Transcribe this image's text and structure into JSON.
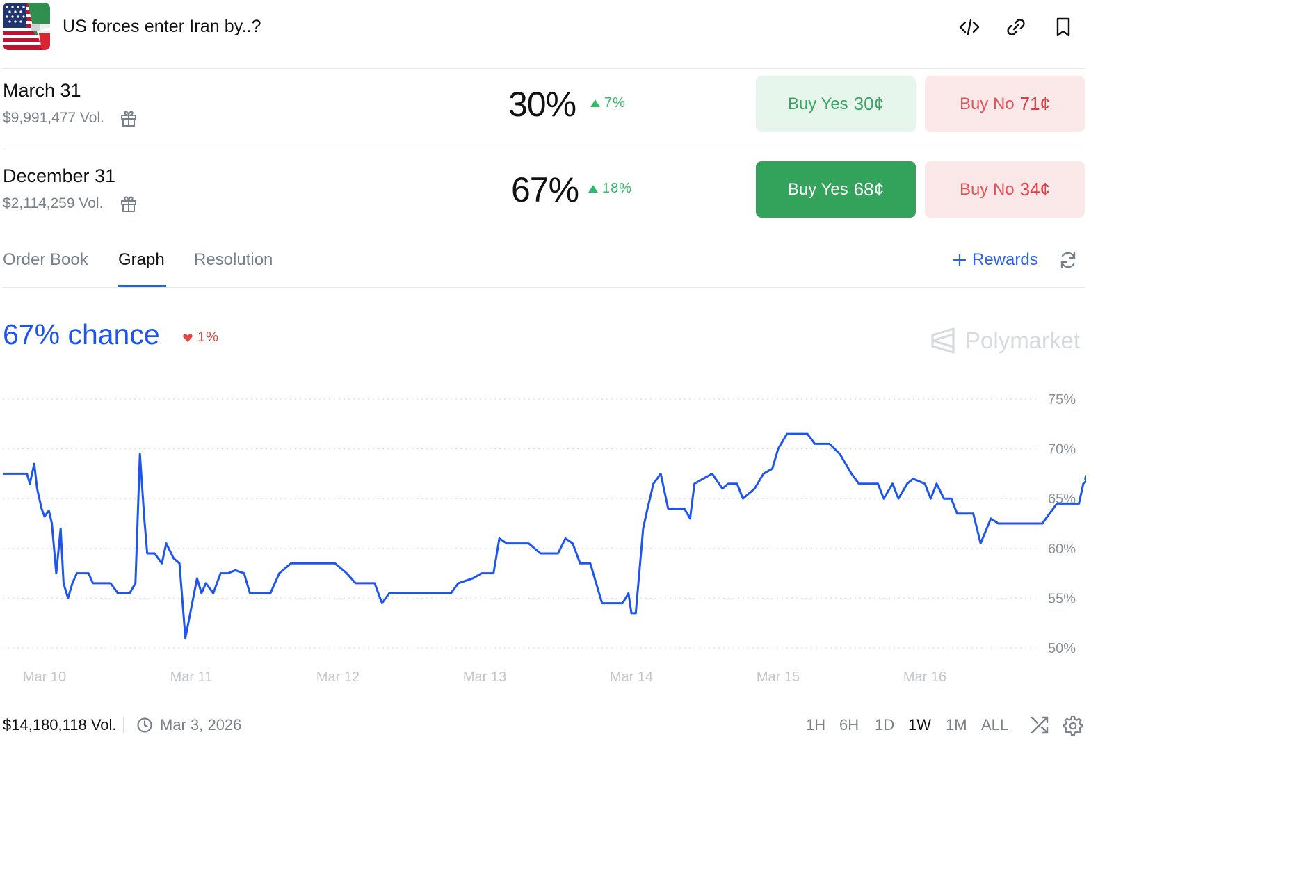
{
  "header": {
    "title": "US forces enter Iran by..?",
    "icons": [
      "code-icon",
      "link-icon",
      "bookmark-icon"
    ]
  },
  "outcomes": [
    {
      "name": "March 31",
      "volume": "$9,991,477 Vol.",
      "percent": "30%",
      "change": "7%",
      "buy_yes_label": "Buy Yes",
      "buy_yes_price": "30¢",
      "buy_no_label": "Buy No",
      "buy_no_price": "71¢"
    },
    {
      "name": "December 31",
      "volume": "$2,114,259 Vol.",
      "percent": "67%",
      "change": "18%",
      "buy_yes_label": "Buy Yes",
      "buy_yes_price": "68¢",
      "buy_no_label": "Buy No",
      "buy_no_price": "34¢"
    }
  ],
  "tabs": {
    "items": [
      "Order Book",
      "Graph",
      "Resolution"
    ],
    "active": "Graph",
    "rewards_label": "Rewards"
  },
  "chance": {
    "label": "67% chance",
    "change": "1%",
    "brand": "Polymarket"
  },
  "chart_data": {
    "type": "line",
    "ylim": [
      50,
      75
    ],
    "y_ticks": [
      "75%",
      "70%",
      "65%",
      "60%",
      "55%",
      "50%"
    ],
    "y_tick_values": [
      75,
      70,
      65,
      60,
      55,
      50
    ],
    "x_ticks": [
      "Mar 10",
      "Mar 11",
      "Mar 12",
      "Mar 13",
      "Mar 14",
      "Mar 15",
      "Mar 16"
    ],
    "grid": true,
    "color": "#1d55ee",
    "series": [
      {
        "points": [
          [
            9.7,
            67.5
          ],
          [
            9.88,
            67.5
          ],
          [
            9.9,
            66.5
          ],
          [
            9.93,
            68.5
          ],
          [
            9.95,
            66
          ],
          [
            9.98,
            64
          ],
          [
            10.0,
            63.2
          ],
          [
            10.03,
            63.8
          ],
          [
            10.05,
            62.5
          ],
          [
            10.08,
            57.5
          ],
          [
            10.11,
            62
          ],
          [
            10.13,
            56.5
          ],
          [
            10.16,
            55
          ],
          [
            10.19,
            56.5
          ],
          [
            10.22,
            57.5
          ],
          [
            10.3,
            57.5
          ],
          [
            10.33,
            56.5
          ],
          [
            10.45,
            56.5
          ],
          [
            10.5,
            55.5
          ],
          [
            10.58,
            55.5
          ],
          [
            10.62,
            56.5
          ],
          [
            10.65,
            69.5
          ],
          [
            10.68,
            63
          ],
          [
            10.7,
            59.5
          ],
          [
            10.75,
            59.5
          ],
          [
            10.8,
            58.5
          ],
          [
            10.83,
            60.5
          ],
          [
            10.88,
            59
          ],
          [
            10.92,
            58.5
          ],
          [
            10.96,
            51
          ],
          [
            11.0,
            54
          ],
          [
            11.04,
            57
          ],
          [
            11.07,
            55.5
          ],
          [
            11.1,
            56.5
          ],
          [
            11.15,
            55.5
          ],
          [
            11.2,
            57.5
          ],
          [
            11.25,
            57.5
          ],
          [
            11.3,
            57.8
          ],
          [
            11.36,
            57.5
          ],
          [
            11.4,
            55.5
          ],
          [
            11.54,
            55.5
          ],
          [
            11.6,
            57.5
          ],
          [
            11.68,
            58.5
          ],
          [
            11.98,
            58.5
          ],
          [
            12.06,
            57.5
          ],
          [
            12.12,
            56.5
          ],
          [
            12.2,
            56.5
          ],
          [
            12.25,
            56.5
          ],
          [
            12.3,
            54.5
          ],
          [
            12.35,
            55.5
          ],
          [
            12.77,
            55.5
          ],
          [
            12.82,
            56.5
          ],
          [
            12.92,
            57
          ],
          [
            12.98,
            57.5
          ],
          [
            13.06,
            57.5
          ],
          [
            13.1,
            61
          ],
          [
            13.15,
            60.5
          ],
          [
            13.2,
            60.5
          ],
          [
            13.3,
            60.5
          ],
          [
            13.38,
            59.5
          ],
          [
            13.5,
            59.5
          ],
          [
            13.55,
            61
          ],
          [
            13.6,
            60.5
          ],
          [
            13.65,
            58.5
          ],
          [
            13.72,
            58.5
          ],
          [
            13.8,
            54.5
          ],
          [
            13.94,
            54.5
          ],
          [
            13.98,
            55.5
          ],
          [
            14.0,
            53.5
          ],
          [
            14.03,
            53.5
          ],
          [
            14.08,
            62
          ],
          [
            14.11,
            64
          ],
          [
            14.15,
            66.5
          ],
          [
            14.2,
            67.5
          ],
          [
            14.25,
            64
          ],
          [
            14.36,
            64
          ],
          [
            14.4,
            63
          ],
          [
            14.43,
            66.5
          ],
          [
            14.55,
            67.5
          ],
          [
            14.62,
            66
          ],
          [
            14.66,
            66.5
          ],
          [
            14.72,
            66.5
          ],
          [
            14.76,
            65
          ],
          [
            14.84,
            66
          ],
          [
            14.9,
            67.5
          ],
          [
            14.96,
            68
          ],
          [
            15.0,
            70
          ],
          [
            15.06,
            71.5
          ],
          [
            15.2,
            71.5
          ],
          [
            15.25,
            70.5
          ],
          [
            15.35,
            70.5
          ],
          [
            15.42,
            69.5
          ],
          [
            15.5,
            67.5
          ],
          [
            15.55,
            66.5
          ],
          [
            15.68,
            66.5
          ],
          [
            15.72,
            65
          ],
          [
            15.78,
            66.5
          ],
          [
            15.82,
            65
          ],
          [
            15.88,
            66.5
          ],
          [
            15.92,
            67
          ],
          [
            16.0,
            66.5
          ],
          [
            16.04,
            65
          ],
          [
            16.08,
            66.5
          ],
          [
            16.13,
            65
          ],
          [
            16.18,
            65
          ],
          [
            16.22,
            63.5
          ],
          [
            16.33,
            63.5
          ],
          [
            16.38,
            60.5
          ],
          [
            16.45,
            63
          ],
          [
            16.5,
            62.5
          ],
          [
            16.8,
            62.5
          ],
          [
            16.85,
            63.5
          ],
          [
            16.9,
            64.5
          ],
          [
            17.05,
            64.5
          ],
          [
            17.08,
            66.5
          ],
          [
            17.12,
            67
          ]
        ]
      }
    ]
  },
  "footer": {
    "volume": "$14,180,118 Vol.",
    "date": "Mar 3, 2026",
    "ranges": [
      "1H",
      "6H",
      "1D",
      "1W",
      "1M",
      "ALL"
    ],
    "active_range": "1W"
  }
}
